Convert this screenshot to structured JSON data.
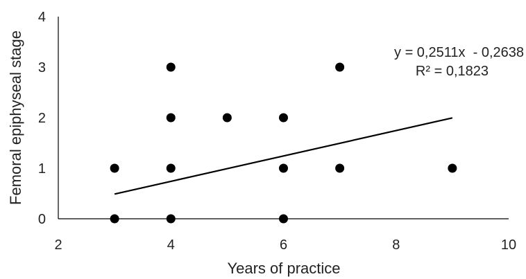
{
  "chart_data": {
    "type": "scatter",
    "xlabel": "Years of practice",
    "ylabel": "Femoral epiphyseal stage",
    "xlim": [
      2,
      10
    ],
    "ylim": [
      0,
      4
    ],
    "xticks": [
      "2",
      "4",
      "6",
      "8",
      "10"
    ],
    "yticks": [
      "0",
      "1",
      "2",
      "3",
      "4"
    ],
    "grid": false,
    "points": [
      {
        "x": 3,
        "y": 0
      },
      {
        "x": 3,
        "y": 1
      },
      {
        "x": 4,
        "y": 0
      },
      {
        "x": 4,
        "y": 1
      },
      {
        "x": 4,
        "y": 2
      },
      {
        "x": 4,
        "y": 3
      },
      {
        "x": 5,
        "y": 2
      },
      {
        "x": 6,
        "y": 0
      },
      {
        "x": 6,
        "y": 1
      },
      {
        "x": 6,
        "y": 2
      },
      {
        "x": 7,
        "y": 1
      },
      {
        "x": 7,
        "y": 3
      },
      {
        "x": 9,
        "y": 1
      }
    ],
    "trendline": {
      "slope": 0.2511,
      "intercept": -0.2638,
      "x_range": [
        3,
        9
      ],
      "equation": "y = 0,2511x  - 0,2638",
      "r_squared": "R² = 0,1823"
    }
  }
}
